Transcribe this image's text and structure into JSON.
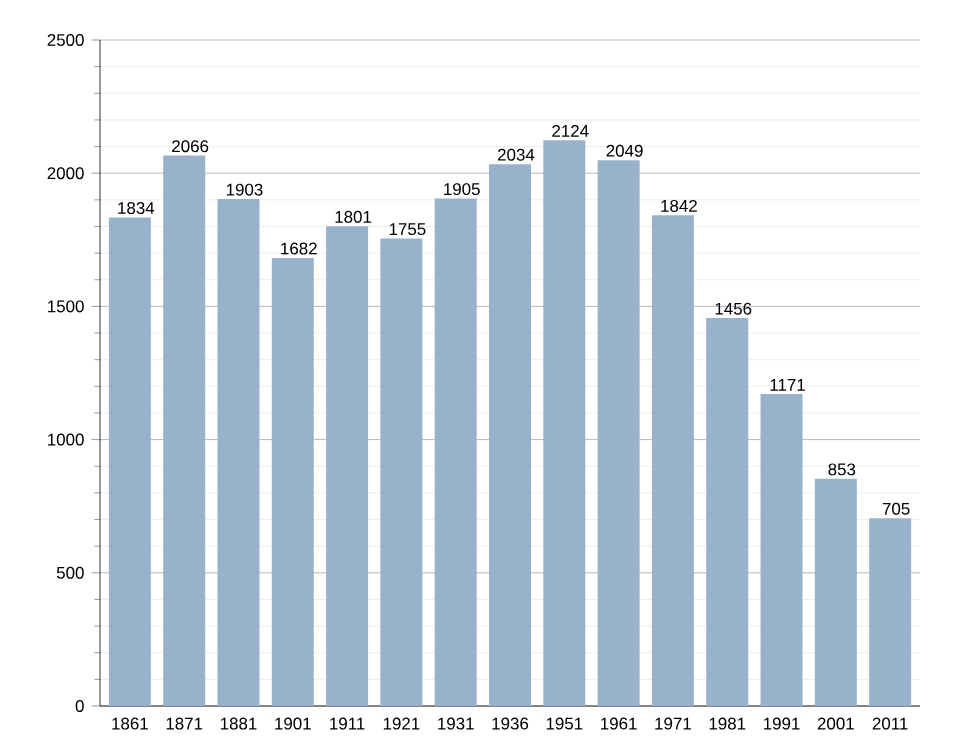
{
  "chart_data": {
    "type": "bar",
    "categories": [
      "1861",
      "1871",
      "1881",
      "1901",
      "1911",
      "1921",
      "1931",
      "1936",
      "1951",
      "1961",
      "1971",
      "1981",
      "1991",
      "2001",
      "2011"
    ],
    "values": [
      1834,
      2066,
      1903,
      1682,
      1801,
      1755,
      1905,
      2034,
      2124,
      2049,
      1842,
      1456,
      1171,
      853,
      705
    ],
    "color": "#98b2cc",
    "ylim": [
      0,
      2500
    ],
    "yticks": [
      0,
      500,
      1000,
      1500,
      2000,
      2500
    ],
    "grid": "y",
    "data_labels": true
  }
}
